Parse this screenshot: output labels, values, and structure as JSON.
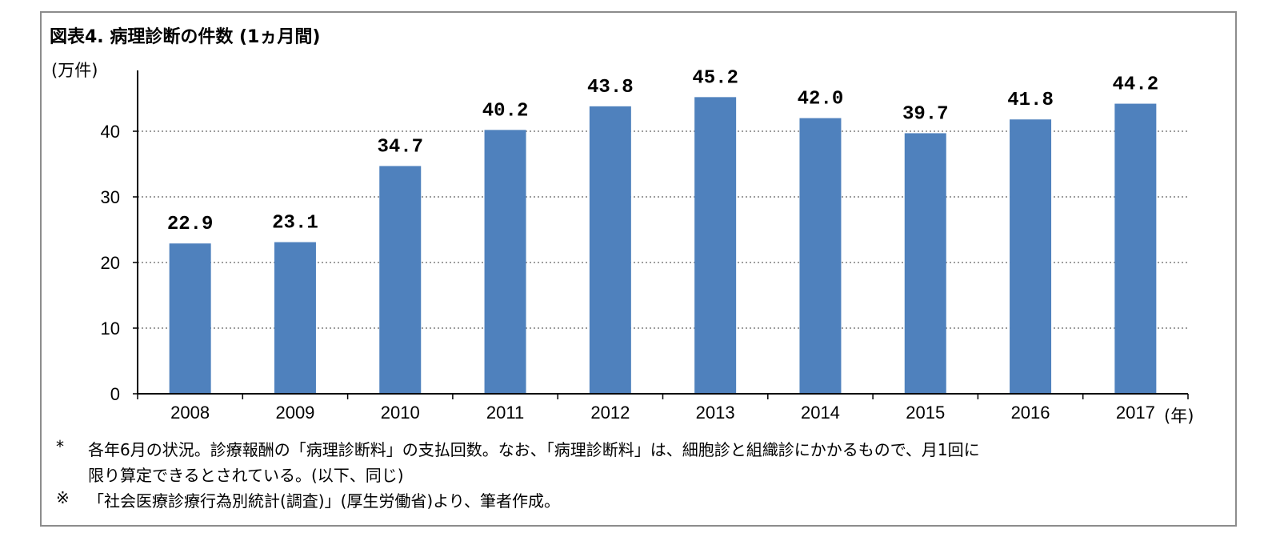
{
  "chart_data": {
    "type": "bar",
    "title": "図表4. 病理診断の件数 (1ヵ月間)",
    "ylabel": "(万件)",
    "xlabel": "(年)",
    "categories": [
      "2008",
      "2009",
      "2010",
      "2011",
      "2012",
      "2013",
      "2014",
      "2015",
      "2016",
      "2017"
    ],
    "values": [
      22.9,
      23.1,
      34.7,
      40.2,
      43.8,
      45.2,
      42.0,
      39.7,
      41.8,
      44.2
    ],
    "data_labels": [
      "22.9",
      "23.1",
      "34.7",
      "40.2",
      "43.8",
      "45.2",
      "42.0",
      "39.7",
      "41.8",
      "44.2"
    ],
    "yticks": [
      0,
      10,
      20,
      30,
      40
    ],
    "ylim": [
      0,
      50
    ],
    "grid": "dotted horizontal",
    "bar_color": "#4f81bd",
    "grid_color": "#7f7f7f"
  },
  "notes": {
    "note1_mark": "*",
    "note1_line1": "各年6月の状況。診療報酬の「病理診断料」の支払回数。なお、「病理診断料」は、細胞診と組織診にかかるもので、月1回に",
    "note1_line2": "限り算定できるとされている。(以下、同じ)",
    "note2_mark": "※",
    "note2_line1": "「社会医療診療行為別統計(調査)」(厚生労働省)より、筆者作成。"
  }
}
